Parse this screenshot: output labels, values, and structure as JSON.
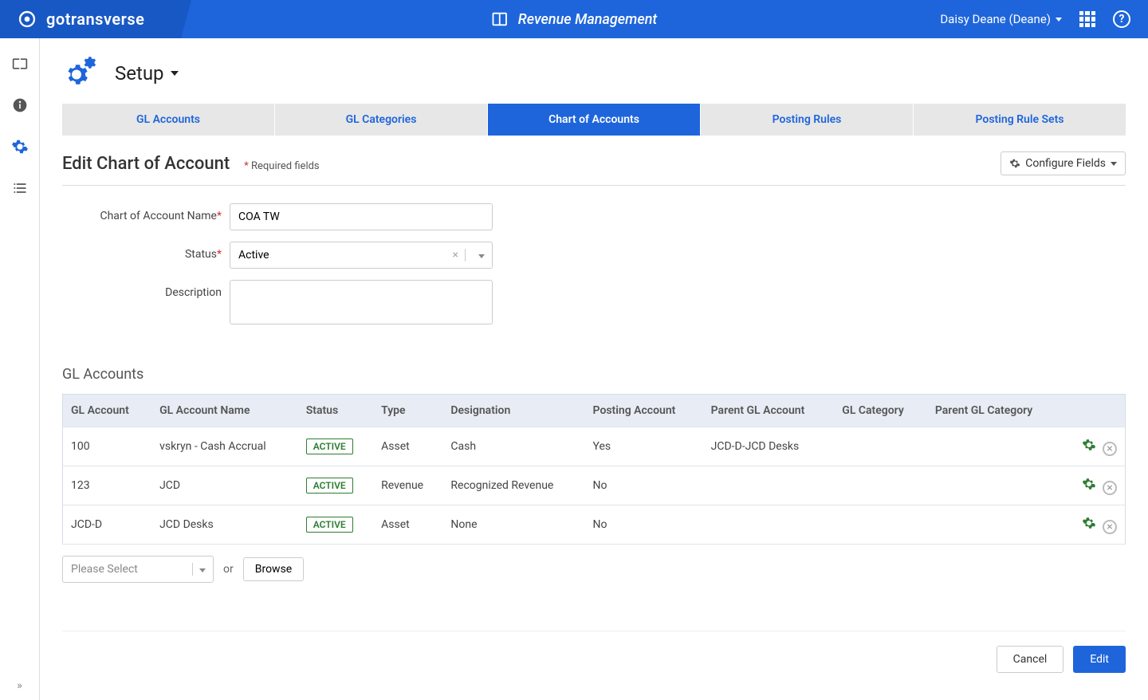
{
  "header": {
    "brand": "gotransverse",
    "module": "Revenue Management",
    "user": "Daisy Deane (Deane)"
  },
  "page": {
    "title": "Setup",
    "tabs": [
      {
        "label": "GL Accounts",
        "active": false
      },
      {
        "label": "GL Categories",
        "active": false
      },
      {
        "label": "Chart of Accounts",
        "active": true
      },
      {
        "label": "Posting Rules",
        "active": false
      },
      {
        "label": "Posting Rule Sets",
        "active": false
      }
    ],
    "section_title": "Edit Chart of Account",
    "required_label": "Required fields",
    "configure_label": "Configure Fields"
  },
  "form": {
    "name_label": "Chart of Account Name",
    "name_value": "COA TW",
    "status_label": "Status",
    "status_value": "Active",
    "description_label": "Description",
    "description_value": ""
  },
  "gl": {
    "heading": "GL Accounts",
    "columns": [
      "GL Account",
      "GL Account Name",
      "Status",
      "Type",
      "Designation",
      "Posting Account",
      "Parent GL Account",
      "GL Category",
      "Parent GL Category",
      ""
    ],
    "rows": [
      {
        "acct": "100",
        "name": "vskryn - Cash Accrual",
        "status": "ACTIVE",
        "type": "Asset",
        "designation": "Cash",
        "posting": "Yes",
        "parent_acct": "JCD-D-JCD Desks",
        "category": "",
        "parent_cat": ""
      },
      {
        "acct": "123",
        "name": "JCD",
        "status": "ACTIVE",
        "type": "Revenue",
        "designation": "Recognized Revenue",
        "posting": "No",
        "parent_acct": "",
        "category": "",
        "parent_cat": ""
      },
      {
        "acct": "JCD-D",
        "name": "JCD Desks",
        "status": "ACTIVE",
        "type": "Asset",
        "designation": "None",
        "posting": "No",
        "parent_acct": "",
        "category": "",
        "parent_cat": ""
      }
    ],
    "select_placeholder": "Please Select",
    "or_label": "or",
    "browse_label": "Browse"
  },
  "footer": {
    "cancel": "Cancel",
    "edit": "Edit"
  },
  "colors": {
    "primary": "#1e65db",
    "active_green": "#2e7d32"
  }
}
